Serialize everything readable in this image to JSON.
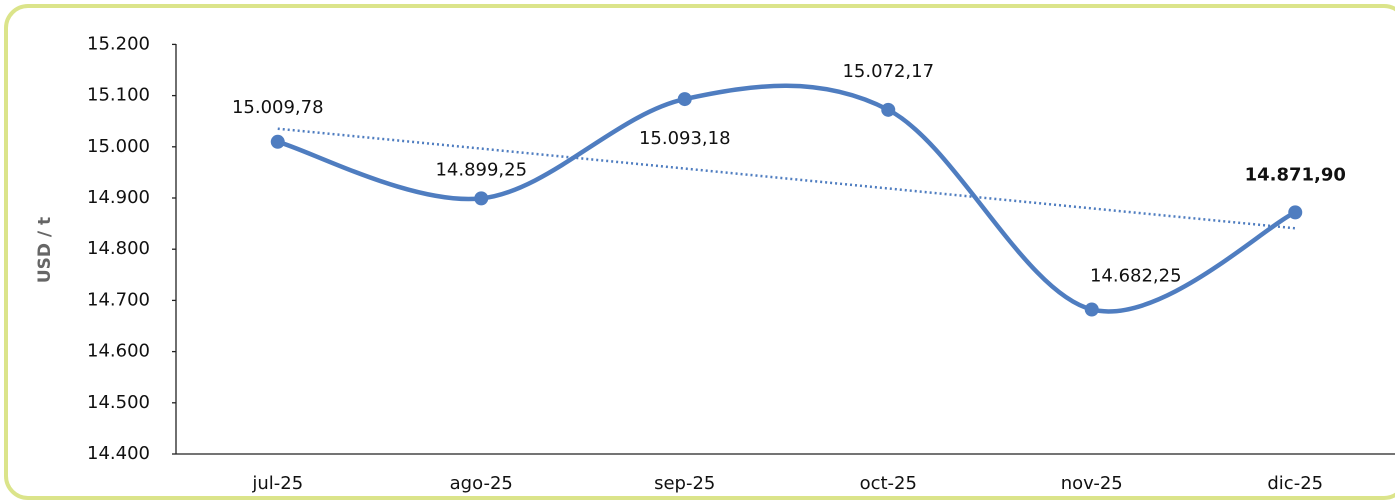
{
  "chart_data": {
    "type": "line",
    "categories": [
      "jul-25",
      "ago-25",
      "sep-25",
      "oct-25",
      "nov-25",
      "dic-25"
    ],
    "series": [
      {
        "name": "USD / t",
        "color": "#4f7dc0",
        "values": [
          15009.78,
          14899.25,
          15093.18,
          15072.17,
          14682.25,
          14871.9
        ],
        "value_labels": [
          "15.009,78",
          "14.899,25",
          "15.093,18",
          "15.072,17",
          "14.682,25",
          "14.871,90"
        ]
      }
    ],
    "ylabel": "USD / t",
    "ylim": [
      14400,
      15200
    ],
    "yticks": [
      {
        "value": 14400,
        "label": "14.400"
      },
      {
        "value": 14500,
        "label": "14.500"
      },
      {
        "value": 14600,
        "label": "14.600"
      },
      {
        "value": 14700,
        "label": "14.700"
      },
      {
        "value": 14800,
        "label": "14.800"
      },
      {
        "value": 14900,
        "label": "14.900"
      },
      {
        "value": 15000,
        "label": "15.000"
      },
      {
        "value": 15100,
        "label": "15.100"
      },
      {
        "value": 15200,
        "label": "15.200"
      }
    ],
    "smooth": true,
    "trendline": true,
    "grid": false
  }
}
